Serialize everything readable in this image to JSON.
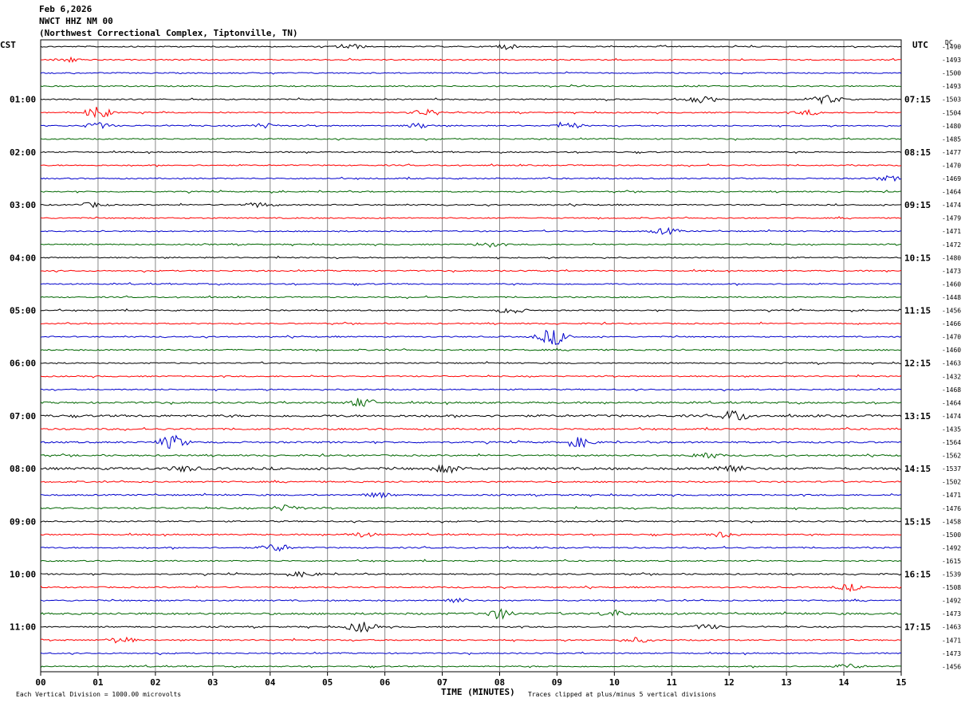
{
  "header": {
    "date": "Feb 6,2026",
    "station": "NWCT HHZ NM 00",
    "location": "(Northwest Correctional Complex, Tiptonville, TN)"
  },
  "left_zone": "CST",
  "right_zone": "UTC",
  "dc_label": "DC",
  "footer": {
    "scale": "Each Vertical Division = 1000.00 microvolts",
    "xlabel": "TIME (MINUTES)",
    "clip": "Traces clipped at plus/minus 5 vertical divisions"
  },
  "chart_data": {
    "type": "line",
    "title": "NWCT HHZ NM 00",
    "xlabel": "TIME (MINUTES)",
    "xlim": [
      0,
      15
    ],
    "x_ticks": [
      "00",
      "01",
      "02",
      "03",
      "04",
      "05",
      "06",
      "07",
      "08",
      "09",
      "10",
      "11",
      "12",
      "13",
      "14",
      "15"
    ],
    "colors": [
      "#000000",
      "#ff0000",
      "#0000cc",
      "#006600"
    ],
    "left_hour_labels": [
      "01:00",
      "02:00",
      "03:00",
      "04:00",
      "05:00",
      "06:00",
      "07:00",
      "08:00",
      "09:00",
      "10:00",
      "11:00"
    ],
    "right_hour_labels": [
      "07:15",
      "08:15",
      "09:15",
      "10:15",
      "11:15",
      "12:15",
      "13:15",
      "14:15",
      "15:15",
      "16:15",
      "17:15"
    ],
    "dc_offsets": [
      "-1490",
      "-1493",
      "-1500",
      "-1493",
      "-1503",
      "-1504",
      "-1480",
      "-1485",
      "-1477",
      "-1470",
      "-1469",
      "-1464",
      "-1474",
      "-1479",
      "-1471",
      "-1472",
      "-1480",
      "-1473",
      "-1460",
      "-1448",
      "-1456",
      "-1466",
      "-1470",
      "-1460",
      "-1463",
      "-1432",
      "-1468",
      "-1464",
      "-1474",
      "-1435",
      "-1564",
      "-1562",
      "-1537",
      "-1502",
      "-1471",
      "-1476",
      "-1458",
      "-1500",
      "-1492",
      "-1615",
      "-1539",
      "-1508",
      "-1492",
      "-1473",
      "-1463",
      "-1471",
      "-1473",
      "-1456"
    ],
    "noise_level": [
      1,
      1,
      1,
      1,
      1,
      1,
      1,
      1,
      1,
      1,
      1,
      1,
      1,
      1,
      1,
      1,
      1,
      1,
      1,
      1,
      1,
      1,
      1,
      1.2,
      1,
      1,
      1,
      1.4,
      1.8,
      1.4,
      1.4,
      1.3,
      2,
      1.3,
      1.2,
      1.3,
      1.1,
      1.1,
      1.1,
      1,
      1.1,
      1.1,
      1.2,
      1.6,
      1.1,
      1.1,
      1,
      1
    ],
    "events": [
      {
        "row": 0,
        "x": 5.4,
        "a": 3
      },
      {
        "row": 0,
        "x": 8.1,
        "a": 3
      },
      {
        "row": 1,
        "x": 0.5,
        "a": 3
      },
      {
        "row": 4,
        "x": 11.5,
        "a": 4
      },
      {
        "row": 4,
        "x": 13.7,
        "a": 6
      },
      {
        "row": 5,
        "x": 1.0,
        "a": 7
      },
      {
        "row": 5,
        "x": 6.7,
        "a": 4
      },
      {
        "row": 5,
        "x": 13.4,
        "a": 3
      },
      {
        "row": 6,
        "x": 1.0,
        "a": 4
      },
      {
        "row": 6,
        "x": 3.9,
        "a": 3
      },
      {
        "row": 6,
        "x": 6.6,
        "a": 3
      },
      {
        "row": 6,
        "x": 9.2,
        "a": 4
      },
      {
        "row": 10,
        "x": 14.8,
        "a": 3
      },
      {
        "row": 12,
        "x": 0.9,
        "a": 3
      },
      {
        "row": 12,
        "x": 3.8,
        "a": 3
      },
      {
        "row": 14,
        "x": 10.9,
        "a": 4
      },
      {
        "row": 15,
        "x": 7.8,
        "a": 3
      },
      {
        "row": 20,
        "x": 8.2,
        "a": 4
      },
      {
        "row": 22,
        "x": 9.0,
        "a": 8
      },
      {
        "row": 22,
        "x": 8.8,
        "a": 4
      },
      {
        "row": 27,
        "x": 5.6,
        "a": 6
      },
      {
        "row": 28,
        "x": 12.1,
        "a": 7
      },
      {
        "row": 30,
        "x": 2.3,
        "a": 9
      },
      {
        "row": 30,
        "x": 9.4,
        "a": 6
      },
      {
        "row": 31,
        "x": 11.6,
        "a": 4
      },
      {
        "row": 32,
        "x": 7.1,
        "a": 5
      },
      {
        "row": 32,
        "x": 12.0,
        "a": 6
      },
      {
        "row": 32,
        "x": 2.5,
        "a": 3
      },
      {
        "row": 34,
        "x": 5.9,
        "a": 3
      },
      {
        "row": 35,
        "x": 4.3,
        "a": 4
      },
      {
        "row": 37,
        "x": 11.9,
        "a": 4
      },
      {
        "row": 37,
        "x": 5.6,
        "a": 3
      },
      {
        "row": 38,
        "x": 4.1,
        "a": 5
      },
      {
        "row": 40,
        "x": 4.6,
        "a": 3
      },
      {
        "row": 41,
        "x": 14.1,
        "a": 4
      },
      {
        "row": 42,
        "x": 7.2,
        "a": 3
      },
      {
        "row": 43,
        "x": 8.0,
        "a": 6
      },
      {
        "row": 43,
        "x": 10.0,
        "a": 4
      },
      {
        "row": 44,
        "x": 5.6,
        "a": 7
      },
      {
        "row": 44,
        "x": 11.6,
        "a": 3
      },
      {
        "row": 45,
        "x": 1.4,
        "a": 4
      },
      {
        "row": 45,
        "x": 10.4,
        "a": 3
      },
      {
        "row": 47,
        "x": 14.1,
        "a": 3
      }
    ]
  }
}
